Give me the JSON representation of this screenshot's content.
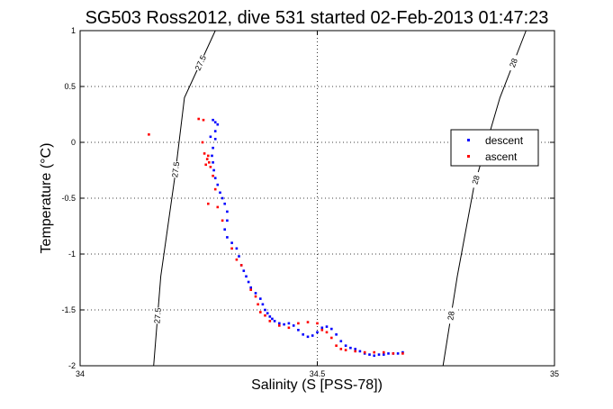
{
  "chart_data": {
    "type": "scatter",
    "title": "SG503 Ross2012, dive 531 started 02-Feb-2013 01:47:23",
    "xlabel": "Salinity (S [PSS-78])",
    "ylabel": "Temperature (°C)",
    "xlim": [
      34,
      35
    ],
    "ylim": [
      -2,
      1
    ],
    "xticks": [
      34,
      34.5,
      35
    ],
    "xtick_labels": [
      "34",
      "34.5",
      "35"
    ],
    "yticks": [
      -2,
      -1.5,
      -1,
      -0.5,
      0,
      0.5,
      1
    ],
    "ytick_labels": [
      "-2",
      "-1.5",
      "-1",
      "-0.5",
      "0",
      "0.5",
      "1"
    ],
    "grid": true,
    "legend_position": "right",
    "series": [
      {
        "name": "descent",
        "color": "#0000ff",
        "points": [
          [
            34.285,
            0.18
          ],
          [
            34.29,
            0.16
          ],
          [
            34.28,
            0.2
          ],
          [
            34.285,
            0.1
          ],
          [
            34.275,
            0.05
          ],
          [
            34.285,
            0.03
          ],
          [
            34.28,
            -0.05
          ],
          [
            34.278,
            -0.12
          ],
          [
            34.28,
            -0.18
          ],
          [
            34.282,
            -0.25
          ],
          [
            34.285,
            -0.32
          ],
          [
            34.29,
            -0.38
          ],
          [
            34.295,
            -0.45
          ],
          [
            34.3,
            -0.5
          ],
          [
            34.305,
            -0.55
          ],
          [
            34.31,
            -0.62
          ],
          [
            34.31,
            -0.7
          ],
          [
            34.305,
            -0.78
          ],
          [
            34.31,
            -0.85
          ],
          [
            34.32,
            -0.9
          ],
          [
            34.33,
            -0.95
          ],
          [
            34.335,
            -1.02
          ],
          [
            34.34,
            -1.1
          ],
          [
            34.345,
            -1.15
          ],
          [
            34.35,
            -1.2
          ],
          [
            34.355,
            -1.25
          ],
          [
            34.36,
            -1.3
          ],
          [
            34.37,
            -1.35
          ],
          [
            34.38,
            -1.4
          ],
          [
            34.385,
            -1.45
          ],
          [
            34.39,
            -1.5
          ],
          [
            34.395,
            -1.53
          ],
          [
            34.4,
            -1.56
          ],
          [
            34.405,
            -1.58
          ],
          [
            34.41,
            -1.6
          ],
          [
            34.42,
            -1.62
          ],
          [
            34.43,
            -1.63
          ],
          [
            34.44,
            -1.62
          ],
          [
            34.45,
            -1.64
          ],
          [
            34.46,
            -1.68
          ],
          [
            34.47,
            -1.72
          ],
          [
            34.48,
            -1.74
          ],
          [
            34.49,
            -1.73
          ],
          [
            34.5,
            -1.7
          ],
          [
            34.51,
            -1.66
          ],
          [
            34.52,
            -1.65
          ],
          [
            34.53,
            -1.67
          ],
          [
            34.54,
            -1.72
          ],
          [
            34.55,
            -1.78
          ],
          [
            34.56,
            -1.82
          ],
          [
            34.57,
            -1.84
          ],
          [
            34.58,
            -1.85
          ],
          [
            34.59,
            -1.87
          ],
          [
            34.6,
            -1.89
          ],
          [
            34.61,
            -1.9
          ],
          [
            34.62,
            -1.91
          ],
          [
            34.63,
            -1.9
          ],
          [
            34.64,
            -1.9
          ],
          [
            34.65,
            -1.89
          ],
          [
            34.66,
            -1.89
          ],
          [
            34.67,
            -1.89
          ],
          [
            34.68,
            -1.88
          ]
        ]
      },
      {
        "name": "ascent",
        "color": "#ff0000",
        "points": [
          [
            34.145,
            0.07
          ],
          [
            34.25,
            0.21
          ],
          [
            34.26,
            0.2
          ],
          [
            34.258,
            0.0
          ],
          [
            34.262,
            -0.1
          ],
          [
            34.268,
            -0.15
          ],
          [
            34.272,
            -0.18
          ],
          [
            34.265,
            -0.2
          ],
          [
            34.27,
            -0.12
          ],
          [
            34.275,
            -0.22
          ],
          [
            34.28,
            -0.3
          ],
          [
            34.285,
            -0.42
          ],
          [
            34.27,
            -0.55
          ],
          [
            34.29,
            -0.58
          ],
          [
            34.3,
            -0.7
          ],
          [
            34.32,
            -0.95
          ],
          [
            34.33,
            -1.05
          ],
          [
            34.34,
            -1.1
          ],
          [
            34.36,
            -1.32
          ],
          [
            34.37,
            -1.38
          ],
          [
            34.375,
            -1.45
          ],
          [
            34.38,
            -1.52
          ],
          [
            34.39,
            -1.55
          ],
          [
            34.4,
            -1.6
          ],
          [
            34.42,
            -1.64
          ],
          [
            34.44,
            -1.66
          ],
          [
            34.46,
            -1.62
          ],
          [
            34.48,
            -1.61
          ],
          [
            34.5,
            -1.62
          ],
          [
            34.51,
            -1.68
          ],
          [
            34.52,
            -1.7
          ],
          [
            34.53,
            -1.75
          ],
          [
            34.54,
            -1.82
          ],
          [
            34.55,
            -1.85
          ],
          [
            34.56,
            -1.86
          ],
          [
            34.58,
            -1.87
          ],
          [
            34.6,
            -1.88
          ],
          [
            34.62,
            -1.88
          ],
          [
            34.64,
            -1.88
          ],
          [
            34.66,
            -1.89
          ],
          [
            34.68,
            -1.89
          ]
        ]
      }
    ],
    "density_contours": [
      {
        "label": "27.5",
        "points": [
          [
            34.285,
            1.0
          ],
          [
            34.22,
            0.4
          ],
          [
            34.2,
            -0.3
          ],
          [
            34.17,
            -1.2
          ],
          [
            34.155,
            -2.0
          ]
        ]
      },
      {
        "label": "28",
        "points": [
          [
            34.94,
            1.0
          ],
          [
            34.885,
            0.4
          ],
          [
            34.83,
            -0.4
          ],
          [
            34.795,
            -1.2
          ],
          [
            34.765,
            -2.0
          ]
        ]
      }
    ]
  }
}
